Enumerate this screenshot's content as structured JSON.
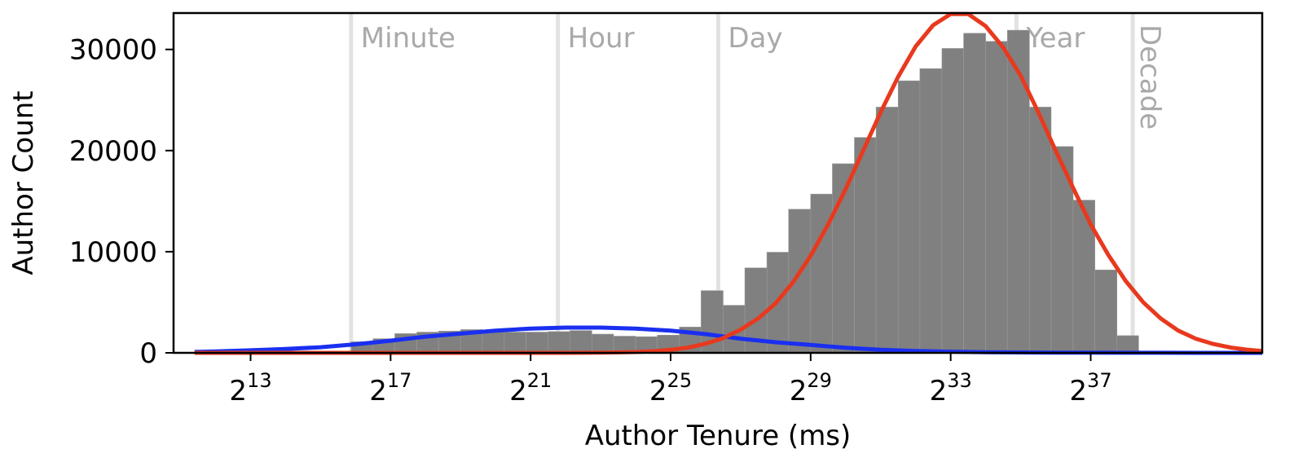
{
  "chart_data": {
    "type": "bar",
    "title": "",
    "xlabel": "Author Tenure (ms)",
    "ylabel": "Author Count",
    "x_scale": "log2",
    "x_unit_note": "x values are log2(ms)",
    "xlim": [
      10.8,
      41.9
    ],
    "ylim": [
      0,
      33600
    ],
    "grid": false,
    "x_ticks": [
      {
        "base": "2",
        "exp": "13",
        "value": 13
      },
      {
        "base": "2",
        "exp": "17",
        "value": 17
      },
      {
        "base": "2",
        "exp": "21",
        "value": 21
      },
      {
        "base": "2",
        "exp": "25",
        "value": 25
      },
      {
        "base": "2",
        "exp": "29",
        "value": 29
      },
      {
        "base": "2",
        "exp": "33",
        "value": 33
      },
      {
        "base": "2",
        "exp": "37",
        "value": 37
      }
    ],
    "y_ticks": [
      {
        "label": "0",
        "value": 0
      },
      {
        "label": "10000",
        "value": 10000
      },
      {
        "label": "20000",
        "value": 20000
      },
      {
        "label": "30000",
        "value": 30000
      }
    ],
    "reference_lines": [
      {
        "label": "Minute",
        "x": 15.87,
        "orientation": "horizontal"
      },
      {
        "label": "Hour",
        "x": 21.78,
        "orientation": "horizontal"
      },
      {
        "label": "Day",
        "x": 26.36,
        "orientation": "horizontal"
      },
      {
        "label": "Year",
        "x": 34.88,
        "orientation": "horizontal"
      },
      {
        "label": "Decade",
        "x": 38.2,
        "orientation": "vertical"
      }
    ],
    "histogram": {
      "color": "#808080",
      "bin_edges": [
        15.87,
        16.5,
        17.12,
        17.75,
        18.37,
        19.0,
        19.62,
        20.25,
        20.87,
        21.5,
        22.12,
        22.75,
        23.37,
        24.0,
        24.62,
        25.25,
        25.87,
        26.5,
        27.12,
        27.75,
        28.37,
        29.0,
        29.62,
        30.25,
        30.87,
        31.5,
        32.12,
        32.75,
        33.37,
        34.0,
        34.62,
        35.25,
        35.87,
        36.5,
        37.12,
        37.75,
        38.37
      ],
      "counts": [
        1100,
        1400,
        1900,
        2050,
        2150,
        2300,
        2250,
        2050,
        2050,
        2100,
        2200,
        1850,
        1650,
        1600,
        1750,
        2550,
        6150,
        4700,
        8400,
        9950,
        14200,
        15700,
        18700,
        21300,
        24300,
        26900,
        28100,
        30100,
        31600,
        30800,
        31900,
        24300,
        20400,
        15100,
        8200,
        1700
      ]
    },
    "series": [
      {
        "color": "#1a2ff0",
        "type": "curve",
        "x": [
          11.4,
          12,
          13,
          14,
          15,
          16,
          17,
          18,
          19,
          20,
          21,
          22,
          23,
          24,
          25,
          26,
          27,
          28,
          29,
          30,
          31,
          32,
          33,
          34,
          35,
          36,
          37,
          38,
          39,
          40,
          41,
          41.9
        ],
        "y": [
          90,
          140,
          250,
          380,
          560,
          850,
          1200,
          1600,
          1900,
          2200,
          2400,
          2500,
          2500,
          2400,
          2200,
          1850,
          1400,
          1050,
          780,
          500,
          300,
          180,
          110,
          60,
          40,
          25,
          15,
          10,
          5,
          3,
          1,
          0
        ]
      },
      {
        "color": "#e8391e",
        "type": "curve",
        "x": [
          11.4,
          22,
          23,
          24,
          24.5,
          25,
          25.5,
          26,
          26.5,
          27,
          27.5,
          28,
          28.5,
          29,
          29.5,
          30,
          30.5,
          31,
          31.5,
          32,
          32.5,
          33,
          33.5,
          34,
          34.5,
          35,
          35.5,
          36,
          36.5,
          37,
          37.5,
          38,
          38.5,
          39,
          39.5,
          40,
          40.5,
          41,
          41.5,
          41.9
        ],
        "y": [
          0,
          0,
          20,
          80,
          160,
          300,
          520,
          900,
          1450,
          2300,
          3400,
          4900,
          7000,
          9600,
          12700,
          16200,
          20000,
          23800,
          27300,
          30300,
          32400,
          33500,
          33500,
          32300,
          30200,
          27400,
          23800,
          20000,
          16300,
          12700,
          9700,
          7100,
          5000,
          3400,
          2200,
          1400,
          880,
          520,
          300,
          180
        ]
      }
    ]
  }
}
